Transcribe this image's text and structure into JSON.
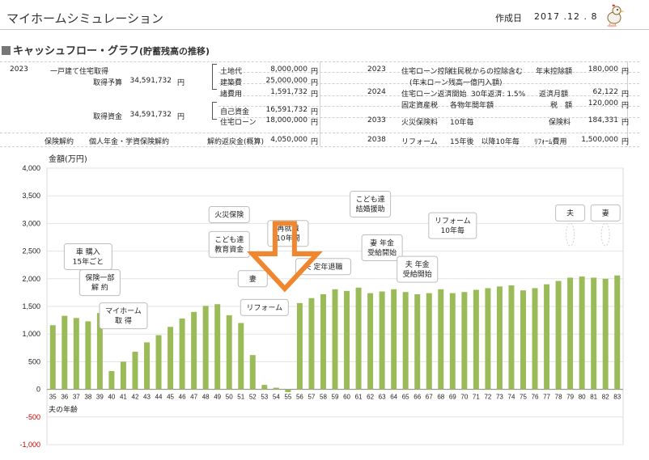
{
  "header": {
    "title": "マイホームシミュレーション",
    "created_label": "作成日",
    "created_date": "2017 .12 . 8"
  },
  "section": {
    "title": "キャッシュフロー・グラフ",
    "subtitle": "(貯蓄残高の推移)"
  },
  "info": {
    "c2023": "2023",
    "home": "一戸建て住宅取得",
    "budget_label": "取得予算",
    "budget": "34,591,732",
    "yen": "円",
    "land": "土地代",
    "land_v": "8,000,000",
    "build": "建築費",
    "build_v": "25,000,000",
    "misc": "諸費用",
    "misc_v": "1,591,732",
    "fund_label": "取得資金",
    "fund": "34,591,732",
    "own": "自己資金",
    "own_v": "16,591,732",
    "loan": "住宅ローン",
    "loan_v": "18,000,000",
    "ins_label": "保険解約",
    "ins_text": "個人年金・学資保険解約",
    "refund_label": "解約返戻金(概算)",
    "refund_v": "4,050,000",
    "r2023": "2023",
    "r2023a": "住宅ローン控除",
    "r2023b": "住民税からの控除含む",
    "r2023c": "(年末ローン残高一億円入額)",
    "r_deduct_label": "年末控除額",
    "r_deduct_v": "180,000",
    "r2024": "2024",
    "r2024a": "住宅ローン返済開始",
    "r2024b": "30年返済: 1.5%",
    "r_monthly_label": "返済月額",
    "r_monthly_v": "62,122",
    "r_tax_row": "固定資産税",
    "r_tax_text": "各物年間年額",
    "r_tax_label": "税　額",
    "r_tax_v": "120,000",
    "r2033": "2033",
    "r2033a": "火災保険料",
    "r2033b": "10年毎",
    "r_fire_label": "保険料",
    "r_fire_v": "184,331",
    "r2038": "2038",
    "r2038a": "リフォーム",
    "r2038b": "15年後　以降10年毎",
    "r_reform_label": "ﾘﾌｫｰﾑ費用",
    "r_reform_v": "1,500,000"
  },
  "colors": {
    "bar": "#9bbb59",
    "arrow": "#f0862e",
    "negative_tick": "#c00000"
  },
  "chart_data": {
    "type": "bar",
    "ylabel": "金額(万円)",
    "xlabel": "夫の年齢",
    "ylim": [
      -1000,
      4000
    ],
    "yticks": [
      4000,
      3500,
      3000,
      2500,
      2000,
      1500,
      1000,
      500,
      0,
      -500,
      -1000
    ],
    "ytick_labels": [
      "4,000",
      "3,500",
      "3,000",
      "2,500",
      "2,000",
      "1,500",
      "1,000",
      "500",
      "0",
      "-500",
      "-1,000"
    ],
    "categories": [
      "35",
      "36",
      "37",
      "38",
      "39",
      "40",
      "41",
      "42",
      "43",
      "44",
      "45",
      "46",
      "47",
      "48",
      "49",
      "50",
      "51",
      "52",
      "53",
      "54",
      "55",
      "56",
      "57",
      "58",
      "59",
      "60",
      "61",
      "62",
      "63",
      "64",
      "65",
      "66",
      "67",
      "68",
      "69",
      "70",
      "71",
      "72",
      "73",
      "74",
      "75",
      "76",
      "77",
      "78",
      "79",
      "80",
      "81",
      "82",
      "83"
    ],
    "values": [
      1160,
      1330,
      1290,
      1230,
      1380,
      330,
      500,
      680,
      850,
      980,
      1130,
      1280,
      1400,
      1510,
      1540,
      1340,
      1200,
      620,
      80,
      30,
      -50,
      1560,
      1650,
      1720,
      1810,
      1780,
      1840,
      1740,
      1770,
      1810,
      1760,
      1720,
      1740,
      1810,
      1740,
      1760,
      1800,
      1830,
      1860,
      1880,
      1790,
      1830,
      1900,
      1960,
      2020,
      2040,
      2020,
      2000,
      2060
    ],
    "annotations": [
      {
        "text": [
          "車 購入",
          "15年ごと"
        ],
        "x": "38",
        "y": 2400
      },
      {
        "text": [
          "保険一部",
          "解 約"
        ],
        "x": "39",
        "y": 1930
      },
      {
        "text": [
          "マイホーム",
          "取 得"
        ],
        "x": "41",
        "y": 1330
      },
      {
        "text": [
          "火災保険"
        ],
        "x": "50",
        "y": 3160
      },
      {
        "text": [
          "こども達",
          "教育資金"
        ],
        "x": "50",
        "y": 2620
      },
      {
        "text": [
          "再就職",
          "10年間"
        ],
        "x": "55",
        "y": 2820
      },
      {
        "text": [
          "妻"
        ],
        "x": "52",
        "y": 2000
      },
      {
        "text": [
          "リフォーム"
        ],
        "x": "53",
        "y": 1480
      },
      {
        "text": [
          "夫 定年退職"
        ],
        "x": "58",
        "y": 2220
      },
      {
        "text": [
          "こども達",
          "結婚援助"
        ],
        "x": "62",
        "y": 3350
      },
      {
        "text": [
          "妻 年金",
          "受給開始"
        ],
        "x": "63",
        "y": 2560
      },
      {
        "text": [
          "リフォーム",
          "10年毎"
        ],
        "x": "69",
        "y": 2960
      },
      {
        "text": [
          "夫 年金",
          "受給開始"
        ],
        "x": "66",
        "y": 2170
      },
      {
        "text": [
          "夫"
        ],
        "x": "79",
        "y": 3190
      },
      {
        "text": [
          "妻"
        ],
        "x": "82",
        "y": 3190
      }
    ]
  }
}
